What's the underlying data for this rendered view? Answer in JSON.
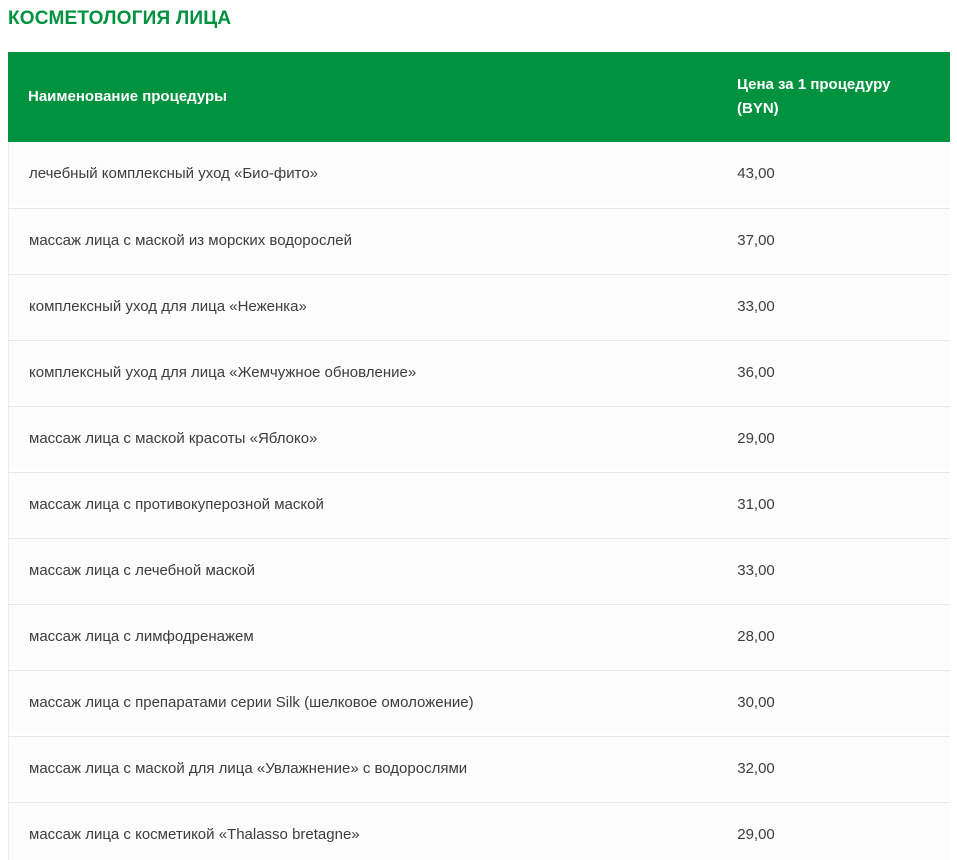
{
  "page_title": "КОСМЕТОЛОГИЯ ЛИЦА",
  "colors": {
    "accent_green": "#00923E",
    "row_background": "#fcfcfc",
    "divider": "#e7e7e7",
    "body_text": "#3d3d3d",
    "header_text": "#ffffff"
  },
  "table": {
    "headers": {
      "name": "Наименование процедуры",
      "price": "Цена за 1 процедуру (BYN)"
    },
    "rows": [
      {
        "name": "лечебный комплексный уход «Био-фито»",
        "price": "43,00"
      },
      {
        "name": "массаж лица с маской из морских водорослей",
        "price": "37,00"
      },
      {
        "name": "комплексный уход для лица «Неженка»",
        "price": "33,00"
      },
      {
        "name": "комплексный уход для лица «Жемчужное обновление»",
        "price": "36,00"
      },
      {
        "name": "массаж лица с маской красоты «Яблоко»",
        "price": "29,00"
      },
      {
        "name": "массаж лица с противокуперозной маской",
        "price": "31,00"
      },
      {
        "name": "массаж лица с лечебной маской",
        "price": "33,00"
      },
      {
        "name": "массаж лица с лимфодренажем",
        "price": "28,00"
      },
      {
        "name": "массаж лица с препаратами серии Silk (шелковое омоложение)",
        "price": "30,00"
      },
      {
        "name": "массаж лица с маской для лица «Увлажнение» с водорослями",
        "price": "32,00"
      },
      {
        "name": "массаж лица с косметикой «Thalasso bretagne»",
        "price": "29,00"
      }
    ]
  }
}
